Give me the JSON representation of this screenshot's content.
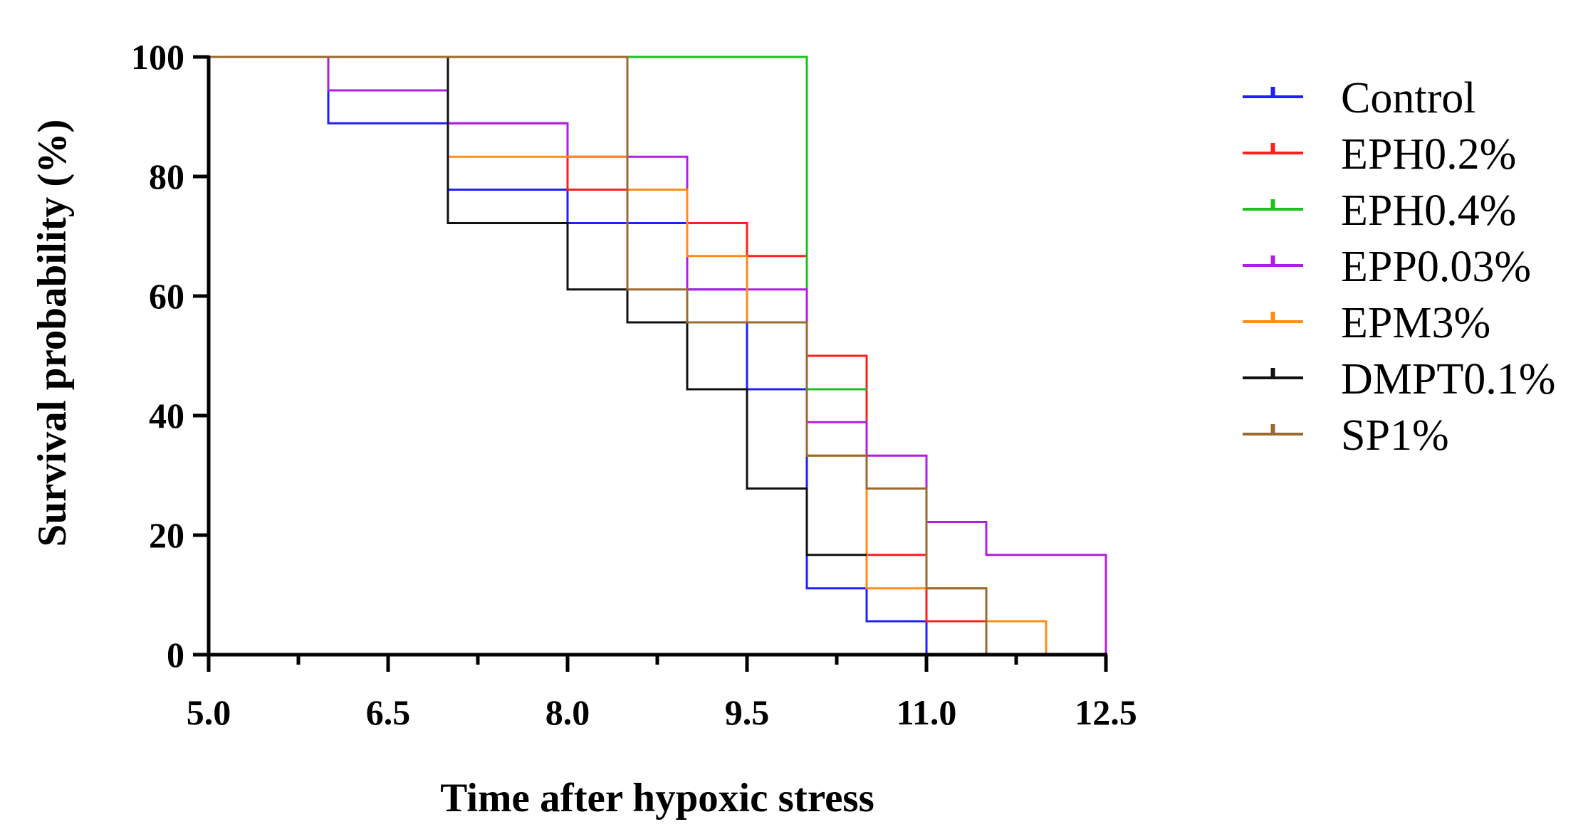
{
  "chart_data": {
    "type": "line",
    "subtype": "kaplan-meier step plot",
    "title": "",
    "xlabel": "Time after hypoxic stress",
    "ylabel": "Survival probability (%)",
    "xlim": [
      5.0,
      12.5
    ],
    "ylim": [
      0,
      100
    ],
    "x_ticks": [
      5.0,
      6.5,
      8.0,
      9.5,
      11.0,
      12.5
    ],
    "x_tick_labels": [
      "5.0",
      "6.5",
      "8.0",
      "9.5",
      "11.0",
      "12.5"
    ],
    "x_minor_ticks": [
      5.75,
      7.25,
      8.75,
      10.25,
      11.75
    ],
    "y_ticks": [
      0,
      20,
      40,
      60,
      80,
      100
    ],
    "y_tick_labels": [
      "0",
      "20",
      "40",
      "60",
      "80",
      "100"
    ],
    "grid": false,
    "legend_position": "right",
    "series": [
      {
        "name": "Control",
        "color": "#1f1fff",
        "x": [
          5.0,
          6.0,
          7.0,
          8.0,
          9.0,
          9.5,
          10.0,
          10.5,
          11.0
        ],
        "y": [
          100,
          88.9,
          77.8,
          72.2,
          61.1,
          44.4,
          11.1,
          5.6,
          0
        ]
      },
      {
        "name": "EPH0.2%",
        "color": "#ff1f1f",
        "x": [
          5.0,
          7.0,
          8.0,
          9.0,
          9.5,
          10.0,
          10.5,
          11.0,
          11.5
        ],
        "y": [
          100,
          88.9,
          77.8,
          72.2,
          66.7,
          50.0,
          16.7,
          5.6,
          0
        ]
      },
      {
        "name": "EPH0.4%",
        "color": "#1fbf1f",
        "x": [
          5.0,
          10.0,
          10.5
        ],
        "y": [
          100,
          44.4,
          44.4
        ]
      },
      {
        "name": "EPP0.03%",
        "color": "#b01fe0",
        "x": [
          5.0,
          6.0,
          7.0,
          8.0,
          9.0,
          9.5,
          10.0,
          10.5,
          11.0,
          11.5,
          12.5
        ],
        "y": [
          100,
          94.4,
          88.9,
          83.3,
          61.1,
          61.1,
          38.9,
          33.3,
          22.2,
          16.7,
          0
        ]
      },
      {
        "name": "EPM3%",
        "color": "#ff8c1a",
        "x": [
          5.0,
          7.0,
          8.5,
          9.0,
          9.5,
          10.0,
          10.5,
          11.5,
          12.0
        ],
        "y": [
          100,
          83.3,
          77.8,
          66.7,
          55.6,
          33.3,
          11.1,
          5.6,
          0
        ]
      },
      {
        "name": "DMPT0.1%",
        "color": "#111111",
        "x": [
          5.0,
          7.0,
          8.0,
          8.5,
          9.0,
          9.5,
          10.0,
          10.5
        ],
        "y": [
          100,
          72.2,
          61.1,
          55.6,
          44.4,
          27.8,
          16.7,
          16.7
        ]
      },
      {
        "name": "SP1%",
        "color": "#9a6a30",
        "x": [
          5.0,
          8.5,
          9.0,
          10.0,
          10.5,
          11.0,
          11.5
        ],
        "y": [
          100,
          61.1,
          55.6,
          33.3,
          27.8,
          11.1,
          0
        ]
      }
    ]
  }
}
